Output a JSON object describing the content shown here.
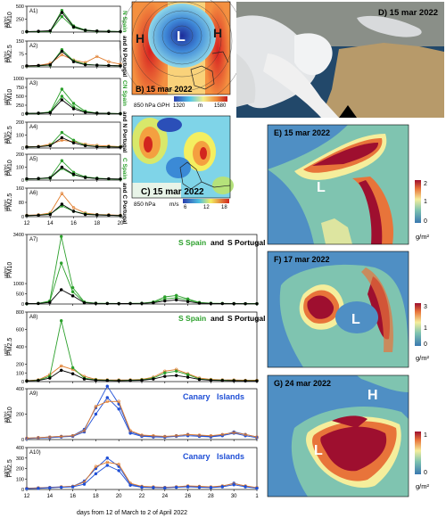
{
  "figure": {
    "panel_a1": "A1)",
    "panel_a2": "A2)",
    "panel_a3": "A3)",
    "panel_a4": "A4)",
    "panel_a5": "A5)",
    "panel_a6": "A6)",
    "panel_a7": "A7)",
    "panel_a8": "A8)",
    "panel_a9": "A9)",
    "panel_a10": "A10)",
    "ylabel_pm10": "PM10",
    "ylabel_pm25": "PM2.5",
    "unit": "µg/m³",
    "region_a12_top": "N Spain",
    "region_a12_bot": "and N Portugal",
    "region_a34_top": "CN Spain",
    "region_a34_bot": "and N Portugal",
    "region_a56_top": "C Spain",
    "region_a56_bot": "and C Portugal",
    "region_a78_green": "S Spain",
    "region_a78_and": "and",
    "region_a78_black": "S Portugal",
    "region_a910": "Canary   Islands",
    "xticks_small": [
      "12",
      "14",
      "16",
      "18",
      "20"
    ],
    "xticks_long": [
      "12",
      "14",
      "16",
      "18",
      "20",
      "22",
      "24",
      "26",
      "28",
      "30",
      "1"
    ],
    "xlabel": "days from 12 of March to 2 of April 2022",
    "panel_b_title": "B) 15 mar 2022",
    "panel_b_level": "850 hPa GPH",
    "panel_b_cb_min": "1320",
    "panel_b_cb_unit": "m",
    "panel_b_cb_max": "1580",
    "panel_b_high": "H",
    "panel_b_low": "L",
    "panel_c_title": "C) 15 mar 2022",
    "panel_c_level": "850 hPa",
    "panel_c_unit": "m/s",
    "panel_c_ticks": [
      "6",
      "12",
      "18"
    ],
    "panel_d_title": "D) 15 mar 2022",
    "panel_e_title": "E) 15 mar 2022",
    "panel_e_cb": [
      "2",
      "1",
      "0"
    ],
    "panel_f_title": "F) 17 mar 2022",
    "panel_f_cb": [
      "3",
      "1",
      "0"
    ],
    "panel_g_title": "G) 24 mar 2022",
    "panel_g_cb": [
      "1",
      "0"
    ],
    "cb_unit": "g/m²",
    "low_label": "L",
    "high_label": "H"
  },
  "chart_data": [
    {
      "type": "line",
      "panel": "A1",
      "measure": "PM10",
      "ylim": [
        0,
        500
      ],
      "yticks": [
        0,
        250,
        500
      ],
      "x": [
        12,
        13,
        14,
        15,
        16,
        17,
        18,
        19,
        20
      ],
      "series": [
        {
          "color": "#2ca02c",
          "values": [
            10,
            12,
            20,
            420,
            120,
            40,
            20,
            15,
            10
          ]
        },
        {
          "color": "#2ca02c",
          "values": [
            8,
            10,
            18,
            300,
            90,
            30,
            15,
            12,
            8
          ]
        },
        {
          "color": "#000000",
          "values": [
            10,
            15,
            25,
            380,
            100,
            35,
            20,
            12,
            10
          ]
        }
      ]
    },
    {
      "type": "line",
      "panel": "A2",
      "measure": "PM2.5",
      "ylim": [
        0,
        150
      ],
      "yticks": [
        0,
        75,
        150
      ],
      "x": [
        12,
        13,
        14,
        15,
        16,
        17,
        18,
        19,
        20
      ],
      "series": [
        {
          "color": "#e07b2a",
          "values": [
            5,
            8,
            20,
            70,
            40,
            25,
            60,
            30,
            15
          ]
        },
        {
          "color": "#2ca02c",
          "values": [
            5,
            6,
            10,
            100,
            35,
            15,
            10,
            8,
            6
          ]
        },
        {
          "color": "#000000",
          "values": [
            6,
            8,
            12,
            90,
            30,
            12,
            10,
            8,
            6
          ]
        }
      ]
    },
    {
      "type": "line",
      "panel": "A3",
      "measure": "PM10",
      "ylim": [
        0,
        1000
      ],
      "yticks": [
        0,
        250,
        500,
        750,
        1000
      ],
      "x": [
        12,
        13,
        14,
        15,
        16,
        17,
        18,
        19,
        20
      ],
      "series": [
        {
          "color": "#2ca02c",
          "values": [
            20,
            25,
            60,
            700,
            300,
            80,
            30,
            20,
            15
          ]
        },
        {
          "color": "#2ca02c",
          "values": [
            15,
            20,
            50,
            500,
            200,
            60,
            25,
            18,
            12
          ]
        },
        {
          "color": "#000000",
          "values": [
            20,
            25,
            40,
            400,
            150,
            50,
            25,
            20,
            15
          ]
        }
      ]
    },
    {
      "type": "line",
      "panel": "A4",
      "measure": "PM2.5",
      "ylim": [
        0,
        200
      ],
      "yticks": [
        0,
        100,
        200
      ],
      "x": [
        12,
        13,
        14,
        15,
        16,
        17,
        18,
        19,
        20
      ],
      "series": [
        {
          "color": "#e07b2a",
          "values": [
            10,
            12,
            30,
            60,
            50,
            30,
            20,
            15,
            10
          ]
        },
        {
          "color": "#2ca02c",
          "values": [
            8,
            10,
            20,
            120,
            60,
            20,
            12,
            10,
            8
          ]
        },
        {
          "color": "#000000",
          "values": [
            8,
            10,
            18,
            80,
            40,
            18,
            10,
            8,
            6
          ]
        }
      ]
    },
    {
      "type": "line",
      "panel": "A5",
      "measure": "PM10",
      "ylim": [
        0,
        200
      ],
      "yticks": [
        0,
        100,
        200
      ],
      "x": [
        12,
        13,
        14,
        15,
        16,
        17,
        18,
        19,
        20
      ],
      "series": [
        {
          "color": "#2ca02c",
          "values": [
            10,
            12,
            20,
            150,
            60,
            25,
            15,
            10,
            8
          ]
        },
        {
          "color": "#2ca02c",
          "values": [
            8,
            10,
            15,
            90,
            40,
            20,
            12,
            8,
            6
          ]
        },
        {
          "color": "#000000",
          "values": [
            10,
            12,
            18,
            100,
            45,
            20,
            12,
            10,
            8
          ]
        }
      ]
    },
    {
      "type": "line",
      "panel": "A6",
      "measure": "PM2.5",
      "ylim": [
        0,
        160
      ],
      "yticks": [
        0,
        80,
        160
      ],
      "x": [
        12,
        13,
        14,
        15,
        16,
        17,
        18,
        19,
        20
      ],
      "series": [
        {
          "color": "#e07b2a",
          "values": [
            8,
            10,
            20,
            130,
            50,
            20,
            12,
            10,
            8
          ]
        },
        {
          "color": "#2ca02c",
          "values": [
            6,
            8,
            15,
            60,
            30,
            15,
            10,
            8,
            6
          ]
        },
        {
          "color": "#000000",
          "values": [
            6,
            8,
            12,
            70,
            30,
            12,
            10,
            8,
            6
          ]
        }
      ]
    },
    {
      "type": "line",
      "panel": "A7",
      "measure": "PM10",
      "ylim": [
        0,
        3400
      ],
      "yticks": [
        0,
        500,
        1000,
        3400
      ],
      "x": [
        12,
        13,
        14,
        15,
        16,
        17,
        18,
        19,
        20,
        21,
        22,
        23,
        24,
        25,
        26,
        27,
        28,
        29,
        30,
        31,
        32
      ],
      "series": [
        {
          "color": "#2ca02c",
          "values": [
            20,
            30,
            150,
            3300,
            800,
            100,
            40,
            30,
            25,
            30,
            40,
            100,
            350,
            420,
            250,
            80,
            40,
            30,
            25,
            20,
            20
          ]
        },
        {
          "color": "#2ca02c",
          "values": [
            15,
            25,
            120,
            2000,
            600,
            80,
            30,
            25,
            20,
            25,
            30,
            80,
            250,
            300,
            200,
            60,
            30,
            25,
            20,
            18,
            15
          ]
        },
        {
          "color": "#000000",
          "values": [
            20,
            25,
            80,
            700,
            400,
            60,
            30,
            25,
            20,
            22,
            30,
            60,
            150,
            200,
            120,
            40,
            25,
            20,
            18,
            15,
            15
          ]
        }
      ]
    },
    {
      "type": "line",
      "panel": "A8",
      "measure": "PM2.5",
      "ylim": [
        0,
        800
      ],
      "yticks": [
        0,
        100,
        200,
        400,
        600,
        800
      ],
      "x": [
        12,
        13,
        14,
        15,
        16,
        17,
        18,
        19,
        20,
        21,
        22,
        23,
        24,
        25,
        26,
        27,
        28,
        29,
        30,
        31,
        32
      ],
      "series": [
        {
          "color": "#e07b2a",
          "values": [
            10,
            20,
            80,
            180,
            140,
            60,
            25,
            20,
            18,
            20,
            25,
            50,
            120,
            140,
            90,
            40,
            25,
            20,
            18,
            15,
            15
          ]
        },
        {
          "color": "#2ca02c",
          "values": [
            8,
            15,
            60,
            700,
            160,
            40,
            20,
            15,
            12,
            15,
            20,
            40,
            100,
            120,
            80,
            30,
            18,
            15,
            12,
            10,
            10
          ]
        },
        {
          "color": "#000000",
          "values": [
            8,
            12,
            40,
            130,
            90,
            30,
            15,
            12,
            10,
            12,
            15,
            30,
            60,
            70,
            50,
            25,
            15,
            12,
            10,
            8,
            8
          ]
        }
      ]
    },
    {
      "type": "line",
      "panel": "A9",
      "measure": "PM10",
      "ylim": [
        0,
        400
      ],
      "yticks": [
        0,
        200,
        400
      ],
      "x": [
        12,
        13,
        14,
        15,
        16,
        17,
        18,
        19,
        20,
        21,
        22,
        23,
        24,
        25,
        26,
        27,
        28,
        29,
        30,
        31,
        32
      ],
      "series": [
        {
          "color": "#1f4fd6",
          "values": [
            10,
            15,
            20,
            25,
            30,
            80,
            250,
            420,
            280,
            60,
            30,
            25,
            20,
            30,
            40,
            30,
            25,
            35,
            60,
            40,
            20
          ]
        },
        {
          "color": "#1f4fd6",
          "values": [
            8,
            12,
            15,
            20,
            25,
            60,
            200,
            330,
            240,
            50,
            25,
            20,
            18,
            25,
            30,
            25,
            20,
            30,
            50,
            30,
            15
          ]
        },
        {
          "color": "#e07b2a",
          "values": [
            12,
            15,
            20,
            25,
            30,
            70,
            260,
            300,
            300,
            70,
            35,
            30,
            25,
            30,
            40,
            35,
            30,
            40,
            55,
            40,
            20
          ]
        }
      ]
    },
    {
      "type": "line",
      "panel": "A10",
      "measure": "PM2.5",
      "ylim": [
        0,
        400
      ],
      "yticks": [
        0,
        100,
        200,
        300,
        400
      ],
      "x": [
        12,
        13,
        14,
        15,
        16,
        17,
        18,
        19,
        20,
        21,
        22,
        23,
        24,
        25,
        26,
        27,
        28,
        29,
        30,
        31,
        32
      ],
      "series": [
        {
          "color": "#1f4fd6",
          "values": [
            10,
            15,
            20,
            25,
            30,
            80,
            200,
            300,
            220,
            50,
            25,
            20,
            18,
            25,
            30,
            25,
            20,
            30,
            60,
            30,
            15
          ]
        },
        {
          "color": "#e07b2a",
          "values": [
            12,
            15,
            18,
            25,
            30,
            70,
            220,
            260,
            240,
            60,
            30,
            25,
            20,
            25,
            35,
            30,
            25,
            35,
            55,
            35,
            18
          ]
        },
        {
          "color": "#1f4fd6",
          "values": [
            8,
            10,
            15,
            20,
            25,
            50,
            150,
            230,
            180,
            40,
            20,
            18,
            15,
            20,
            25,
            20,
            18,
            25,
            45,
            25,
            12
          ]
        }
      ]
    }
  ]
}
